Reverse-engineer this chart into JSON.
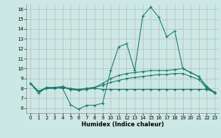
{
  "xlabel": "Humidex (Indice chaleur)",
  "bg_color": "#cce8e4",
  "line_color": "#1a7a6e",
  "grid_color": "#b0b0b0",
  "xlim": [
    -0.5,
    23.5
  ],
  "ylim": [
    5.5,
    16.5
  ],
  "yticks": [
    6,
    7,
    8,
    9,
    10,
    11,
    12,
    13,
    14,
    15,
    16
  ],
  "xticks": [
    0,
    1,
    2,
    3,
    4,
    5,
    6,
    7,
    8,
    9,
    10,
    11,
    12,
    13,
    14,
    15,
    16,
    17,
    18,
    19,
    20,
    21,
    22,
    23
  ],
  "line1_x": [
    0,
    1,
    2,
    3,
    4,
    5,
    6,
    7,
    8,
    9,
    10,
    11,
    12,
    13,
    14,
    15,
    16,
    17,
    18,
    19,
    20,
    21,
    22,
    23
  ],
  "line1_y": [
    8.5,
    7.5,
    8.1,
    8.1,
    8.0,
    6.35,
    5.9,
    6.3,
    6.3,
    6.5,
    9.8,
    12.2,
    12.5,
    9.8,
    15.3,
    16.2,
    15.2,
    13.2,
    13.8,
    10.0,
    9.6,
    9.2,
    8.1,
    7.5
  ],
  "line2_x": [
    0,
    1,
    2,
    3,
    4,
    5,
    6,
    7,
    8,
    9,
    10,
    11,
    12,
    13,
    14,
    15,
    16,
    17,
    18,
    19,
    20,
    21,
    22,
    23
  ],
  "line2_y": [
    8.5,
    7.7,
    8.1,
    8.1,
    8.2,
    7.9,
    7.9,
    8.0,
    8.1,
    8.5,
    9.0,
    9.3,
    9.5,
    9.6,
    9.7,
    9.8,
    9.8,
    9.8,
    9.9,
    10.0,
    9.6,
    9.2,
    8.2,
    7.6
  ],
  "line3_x": [
    0,
    1,
    2,
    3,
    4,
    5,
    6,
    7,
    8,
    9,
    10,
    11,
    12,
    13,
    14,
    15,
    16,
    17,
    18,
    19,
    20,
    21,
    22,
    23
  ],
  "line3_y": [
    8.5,
    7.7,
    8.0,
    8.0,
    8.1,
    8.0,
    7.9,
    8.0,
    8.1,
    8.3,
    8.6,
    8.8,
    9.0,
    9.1,
    9.2,
    9.3,
    9.4,
    9.4,
    9.5,
    9.5,
    9.2,
    8.9,
    8.0,
    7.6
  ],
  "line4_x": [
    0,
    1,
    2,
    3,
    4,
    5,
    6,
    7,
    8,
    9,
    10,
    11,
    12,
    13,
    14,
    15,
    16,
    17,
    18,
    19,
    20,
    21,
    22,
    23
  ],
  "line4_y": [
    8.5,
    7.7,
    8.0,
    8.0,
    8.1,
    7.9,
    7.8,
    7.9,
    8.0,
    7.9,
    7.9,
    7.9,
    7.9,
    7.9,
    7.9,
    7.9,
    7.9,
    7.9,
    7.9,
    7.9,
    7.9,
    7.9,
    7.9,
    7.6
  ]
}
